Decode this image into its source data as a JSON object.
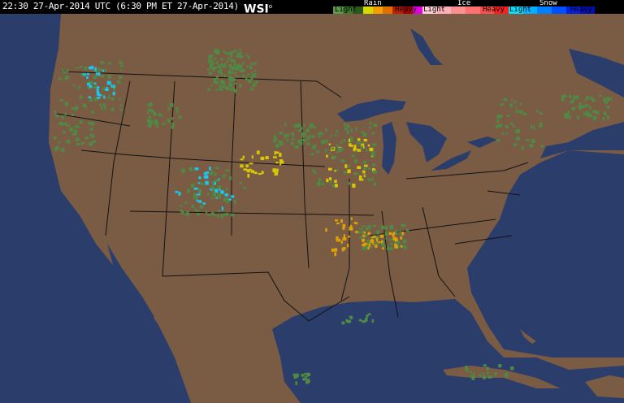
{
  "header": {
    "timestamp": "22:30 27-Apr-2014 UTC (6:30 PM ET 27-Apr-2014)",
    "logo": "WSI"
  },
  "legend": {
    "rain": {
      "title": "Rain",
      "light": "Light",
      "heavy": "Heavy",
      "colors": [
        "#5a9a4a",
        "#3f7a30",
        "#2a5a1a",
        "#d8d800",
        "#f0a000",
        "#e07000",
        "#c02000",
        "#a00000",
        "#e000e0"
      ]
    },
    "ice": {
      "title": "Ice",
      "light": "Light",
      "heavy": "Heavy",
      "colors": [
        "#ffd0d8",
        "#ffb0b8",
        "#ff9090",
        "#ff7070",
        "#ff5050",
        "#ff2020"
      ]
    },
    "snow": {
      "title": "Snow",
      "light": "Light",
      "heavy": "Heavy",
      "colors": [
        "#00e0ff",
        "#00b0ff",
        "#0080ff",
        "#0050ff",
        "#0020e0",
        "#0010b0"
      ]
    }
  },
  "map": {
    "land_color": "#7a5c45",
    "water_color": "#2a3d6b",
    "border_color": "#111111"
  }
}
